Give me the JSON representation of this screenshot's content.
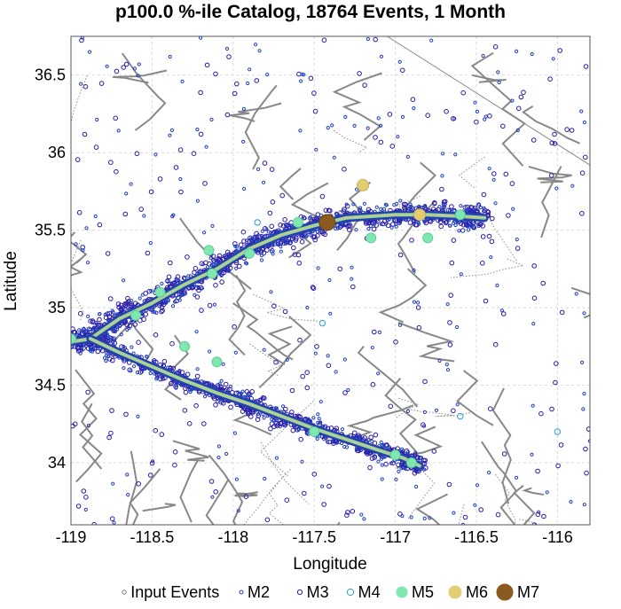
{
  "chart_data": {
    "type": "scatter",
    "title": "p100.0 %-ile Catalog, 18764 Events, 1 Month",
    "xlabel": "Longitude",
    "ylabel": "Latitude",
    "xlim": [
      -119,
      -115.8
    ],
    "ylim": [
      33.6,
      36.75
    ],
    "xticks": [
      -119,
      -118.5,
      -118,
      -117.5,
      -117,
      -116.5,
      -116
    ],
    "xtick_labels": [
      "-119",
      "-118.5",
      "-118",
      "-117.5",
      "-117",
      "-116.5",
      "-116"
    ],
    "yticks": [
      34,
      34.5,
      35,
      35.5,
      36,
      36.5
    ],
    "ytick_labels": [
      "34",
      "34.5",
      "35",
      "35.5",
      "36",
      "36.5"
    ],
    "grid": true,
    "legend_position": "bottom",
    "legend": [
      {
        "label": "Input Events",
        "marker": "input",
        "color": "#777777"
      },
      {
        "label": "M2",
        "marker": "m2",
        "color": "#1f3fbf"
      },
      {
        "label": "M3",
        "marker": "m3",
        "color": "#2a1aa8"
      },
      {
        "label": "M4",
        "marker": "m4",
        "color": "#2a9fd6"
      },
      {
        "label": "M5",
        "marker": "m5",
        "color": "#7fe8b0"
      },
      {
        "label": "M6",
        "marker": "m6",
        "color": "#e3cc72"
      },
      {
        "label": "M7",
        "marker": "m7",
        "color": "#8b5a1e"
      }
    ],
    "rupture_trace": {
      "northern_branch": [
        [
          -119.0,
          34.78
        ],
        [
          -118.88,
          34.8
        ],
        [
          -118.7,
          34.93
        ],
        [
          -118.5,
          35.03
        ],
        [
          -118.3,
          35.15
        ],
        [
          -118.1,
          35.25
        ],
        [
          -117.9,
          35.38
        ],
        [
          -117.7,
          35.47
        ],
        [
          -117.5,
          35.53
        ],
        [
          -117.3,
          35.58
        ],
        [
          -117.0,
          35.6
        ],
        [
          -116.8,
          35.6
        ],
        [
          -116.6,
          35.59
        ],
        [
          -116.45,
          35.58
        ]
      ],
      "southern_branch": [
        [
          -118.88,
          34.8
        ],
        [
          -118.7,
          34.71
        ],
        [
          -118.5,
          34.62
        ],
        [
          -118.3,
          34.53
        ],
        [
          -118.1,
          34.45
        ],
        [
          -117.9,
          34.38
        ],
        [
          -117.7,
          34.3
        ],
        [
          -117.5,
          34.22
        ],
        [
          -117.3,
          34.15
        ],
        [
          -117.1,
          34.08
        ],
        [
          -116.95,
          34.03
        ],
        [
          -116.85,
          33.98
        ]
      ]
    },
    "large_events": [
      {
        "magnitude": "M7",
        "lon": -117.42,
        "lat": 35.55
      },
      {
        "magnitude": "M6",
        "lon": -117.2,
        "lat": 35.79
      },
      {
        "magnitude": "M6",
        "lon": -116.85,
        "lat": 35.6
      },
      {
        "magnitude": "M5",
        "lon": -119.0,
        "lat": 34.8
      },
      {
        "magnitude": "M5",
        "lon": -118.6,
        "lat": 34.95
      },
      {
        "magnitude": "M5",
        "lon": -118.45,
        "lat": 35.1
      },
      {
        "magnitude": "M5",
        "lon": -118.15,
        "lat": 35.37
      },
      {
        "magnitude": "M5",
        "lon": -118.13,
        "lat": 35.22
      },
      {
        "magnitude": "M5",
        "lon": -117.9,
        "lat": 35.35
      },
      {
        "magnitude": "M5",
        "lon": -117.6,
        "lat": 35.55
      },
      {
        "magnitude": "M5",
        "lon": -117.15,
        "lat": 35.45
      },
      {
        "magnitude": "M5",
        "lon": -116.8,
        "lat": 35.45
      },
      {
        "magnitude": "M5",
        "lon": -116.6,
        "lat": 35.6
      },
      {
        "magnitude": "M5",
        "lon": -118.3,
        "lat": 34.75
      },
      {
        "magnitude": "M5",
        "lon": -118.1,
        "lat": 34.65
      },
      {
        "magnitude": "M5",
        "lon": -117.5,
        "lat": 34.2
      },
      {
        "magnitude": "M5",
        "lon": -117.0,
        "lat": 34.05
      },
      {
        "magnitude": "M5",
        "lon": -116.9,
        "lat": 34.0
      },
      {
        "magnitude": "M4",
        "lon": -116.0,
        "lat": 34.2
      },
      {
        "magnitude": "M4",
        "lon": -117.45,
        "lat": 34.9
      },
      {
        "magnitude": "M4",
        "lon": -116.6,
        "lat": 34.3
      },
      {
        "magnitude": "M4",
        "lon": -117.85,
        "lat": 35.55
      }
    ]
  }
}
